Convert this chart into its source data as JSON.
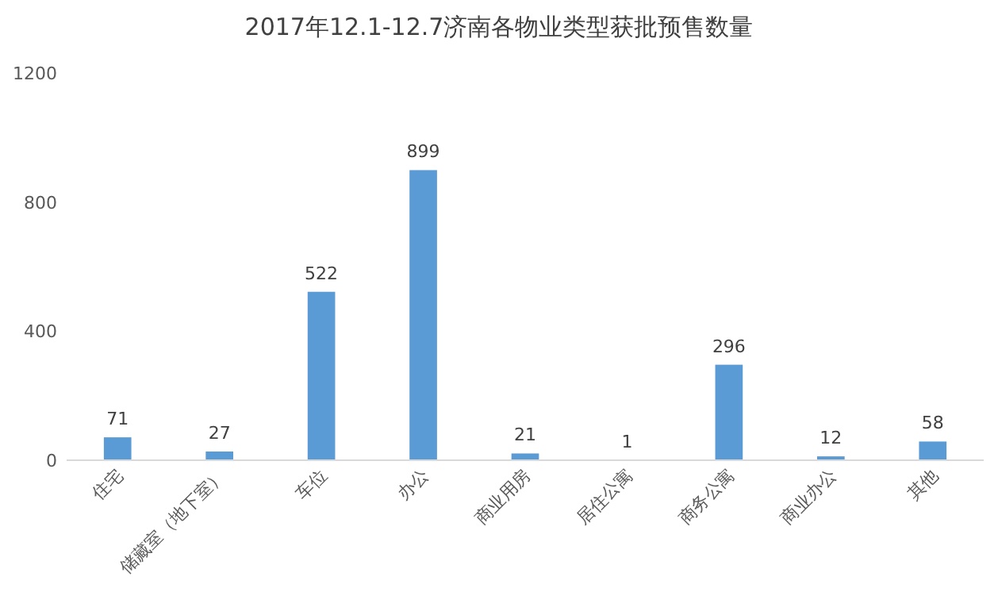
{
  "chart_data": {
    "type": "bar",
    "title": "2017年12.1-12.7济南各物业类型获批预售数量",
    "categories": [
      "住宅",
      "储藏室（地下室）",
      "车位",
      "办公",
      "商业用房",
      "居住公寓",
      "商务公寓",
      "商业办公",
      "其他"
    ],
    "values": [
      71,
      27,
      522,
      899,
      21,
      1,
      296,
      12,
      58
    ],
    "color": "#5b9bd5",
    "ylim": [
      0,
      1200
    ],
    "yticks": [
      0,
      400,
      800,
      1200
    ],
    "data_labels": true,
    "grid": false
  }
}
